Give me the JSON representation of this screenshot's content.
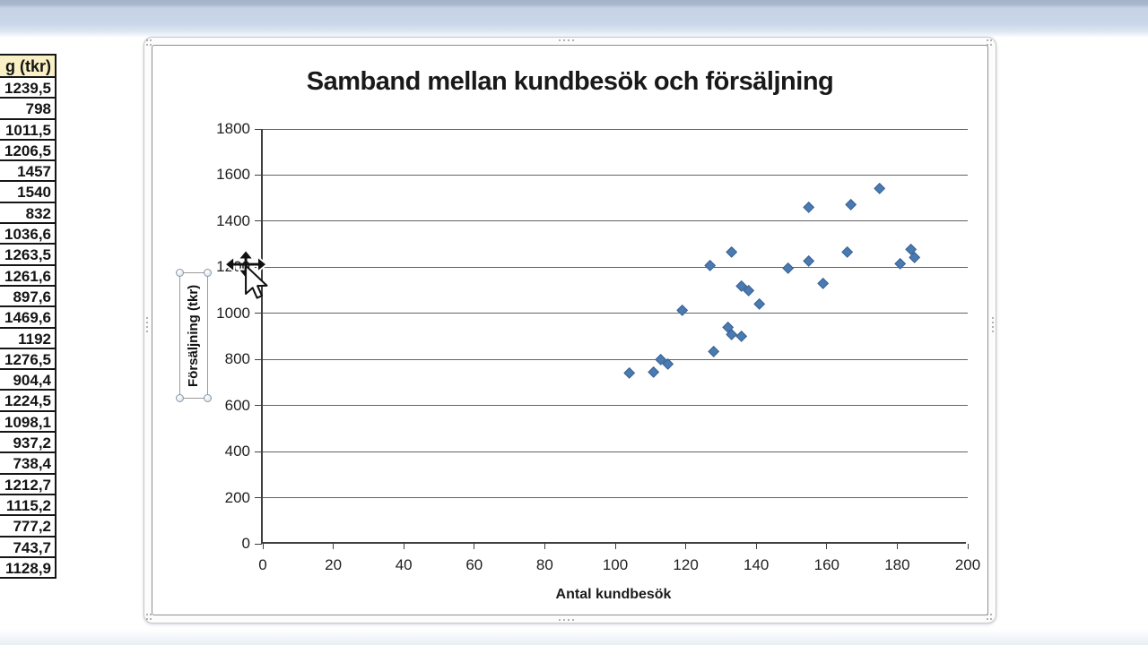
{
  "window": {
    "top_band_color": "#c9d5e8",
    "bottom_band_color": "#e9eff7"
  },
  "table": {
    "header": "g (tkr)",
    "header_bg": "#faf0c6",
    "values": [
      "1239,5",
      "798",
      "1011,5",
      "1206,5",
      "1457",
      "1540",
      "832",
      "1036,6",
      "1263,5",
      "1261,6",
      "897,6",
      "1469,6",
      "1192",
      "1276,5",
      "904,4",
      "1224,5",
      "1098,1",
      "937,2",
      "738,4",
      "1212,7",
      "1115,2",
      "777,2",
      "743,7",
      "1128,9"
    ]
  },
  "chart_data": {
    "type": "scatter",
    "title": "Samband mellan kundbesök och försäljning",
    "xlabel": "Antal kundbesök",
    "ylabel": "Försäljning  (tkr)",
    "xlim": [
      0,
      200
    ],
    "ylim": [
      0,
      1800
    ],
    "xticks": [
      0,
      20,
      40,
      60,
      80,
      100,
      120,
      140,
      160,
      180,
      200
    ],
    "yticks": [
      0,
      200,
      400,
      600,
      800,
      1000,
      1200,
      1400,
      1600,
      1800
    ],
    "grid": "horizontal",
    "legend": "none",
    "marker": "diamond",
    "marker_color": "#4a7ab3",
    "marker_edge_color": "#3a628f",
    "points": [
      [
        185,
        1239.5
      ],
      [
        113,
        798
      ],
      [
        119,
        1011.5
      ],
      [
        127,
        1206.5
      ],
      [
        155,
        1457
      ],
      [
        175,
        1540
      ],
      [
        128,
        832
      ],
      [
        141,
        1036.6
      ],
      [
        166,
        1263.5
      ],
      [
        133,
        1261.6
      ],
      [
        136,
        897.6
      ],
      [
        167,
        1469.6
      ],
      [
        149,
        1192
      ],
      [
        184,
        1276.5
      ],
      [
        133,
        904.4
      ],
      [
        155,
        1224.5
      ],
      [
        138,
        1098.1
      ],
      [
        132,
        937.2
      ],
      [
        104,
        738.4
      ],
      [
        181,
        1212.7
      ],
      [
        136,
        1115.2
      ],
      [
        115,
        777.2
      ],
      [
        111,
        743.7
      ],
      [
        159,
        1128.9
      ]
    ]
  },
  "cursor": {
    "icon": "move-arrow-pointer"
  }
}
